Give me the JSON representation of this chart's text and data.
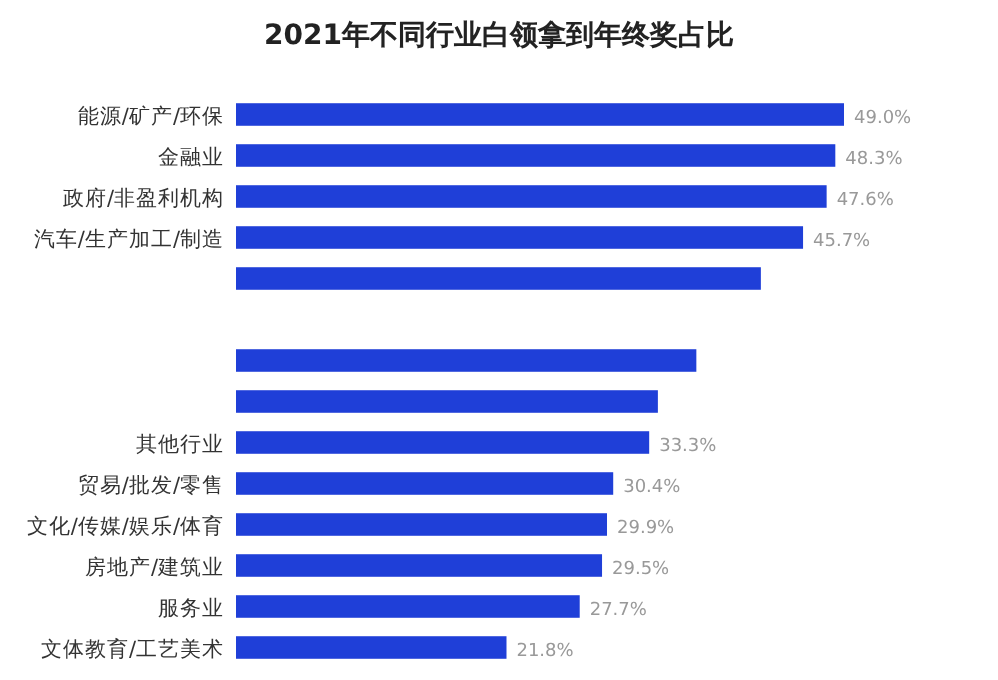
{
  "chart_data": {
    "type": "bar",
    "orientation": "horizontal",
    "title": "2021年不同行业白领拿到年终奖占比",
    "categories": [
      "能源/矿产/环保",
      "金融业",
      "政府/非盈利机构",
      "汽车/生产加工/制造",
      null,
      null,
      null,
      null,
      "其他行业",
      "贸易/批发/零售",
      "文化/传媒/娱乐/体育",
      "房地产/建筑业",
      "服务业",
      "文体教育/工艺美术"
    ],
    "values": [
      49.0,
      48.3,
      47.6,
      45.7,
      42.3,
      null,
      37.1,
      34.0,
      33.3,
      30.4,
      29.9,
      29.5,
      27.7,
      21.8
    ],
    "value_labels": [
      "49.0%",
      "48.3%",
      "47.6%",
      "45.7%",
      null,
      null,
      null,
      null,
      "33.3%",
      "30.4%",
      "29.9%",
      "29.5%",
      "27.7%",
      "21.8%"
    ],
    "color": "#1f3fd8"
  }
}
